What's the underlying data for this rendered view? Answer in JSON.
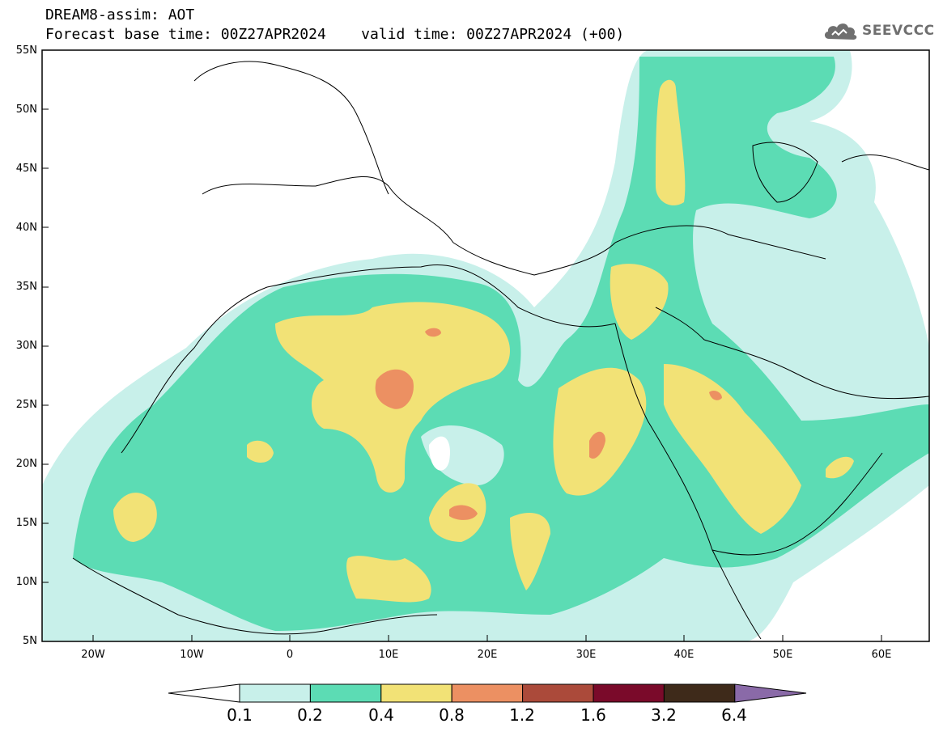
{
  "header": {
    "line1": "DREAM8-assim: AOT",
    "line2": "Forecast base time: 00Z27APR2024    valid time: 00Z27APR2024 (+00)"
  },
  "logo": {
    "text": "SEEVCCC",
    "icon": "cloud-icon"
  },
  "map": {
    "lat_labels": [
      "55N",
      "50N",
      "45N",
      "40N",
      "35N",
      "30N",
      "25N",
      "20N",
      "15N",
      "10N",
      "5N"
    ],
    "lon_labels": [
      "20W",
      "10W",
      "0",
      "10E",
      "20E",
      "30E",
      "40E",
      "50E",
      "60E"
    ],
    "lon_range": [
      -25,
      65
    ],
    "lat_range": [
      5,
      55
    ]
  },
  "legend": {
    "labels": [
      "0.1",
      "0.2",
      "0.4",
      "0.8",
      "1.2",
      "1.6",
      "3.2",
      "6.4"
    ],
    "colors": [
      "#ffffff",
      "#c8f0ea",
      "#5cdcb4",
      "#f2e276",
      "#ec9062",
      "#ab4a3a",
      "#7a0a2a",
      "#3e2a1a",
      "#8a6aa8"
    ]
  }
}
